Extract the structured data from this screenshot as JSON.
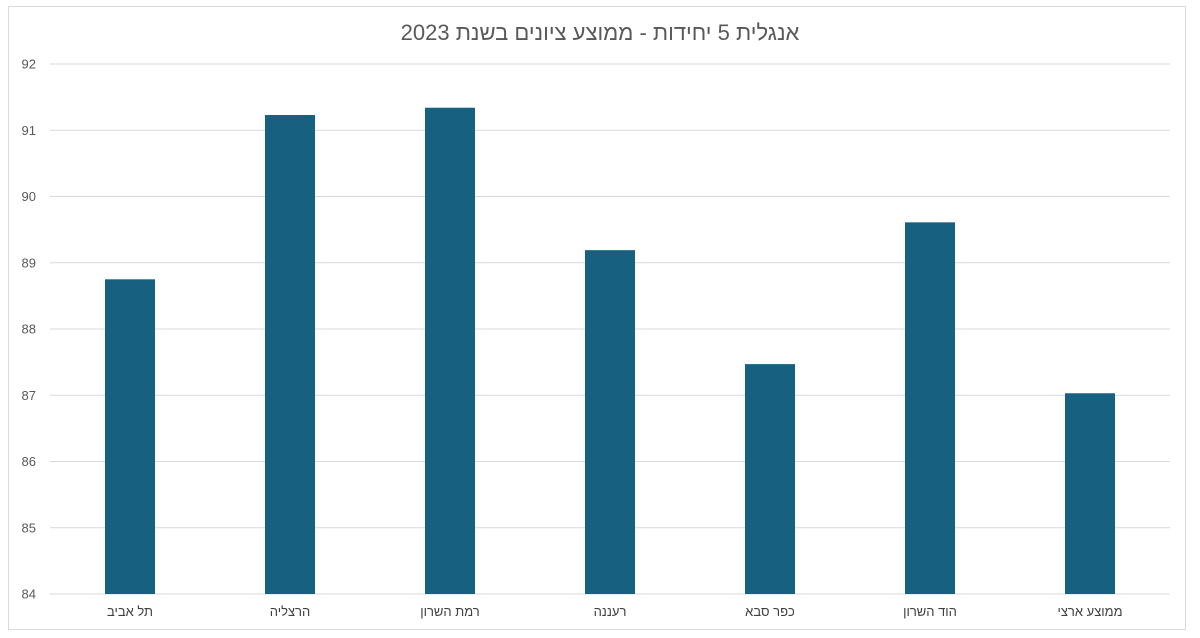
{
  "chart_data": {
    "type": "bar",
    "title": "אנגלית 5 יחידות - ממוצע ציונים בשנת 2023",
    "xlabel": "",
    "ylabel": "",
    "categories": [
      "תל אביב",
      "הרצליה",
      "רמת השרון",
      "רעננה",
      "כפר סבא",
      "הוד השרון",
      "ממוצע ארצי"
    ],
    "values": [
      88.75,
      91.23,
      91.34,
      89.19,
      87.47,
      89.61,
      87.03
    ],
    "ylim": [
      84,
      92
    ],
    "yticks": [
      84,
      85,
      86,
      87,
      88,
      89,
      90,
      91,
      92
    ],
    "grid": true,
    "bar_color": "#17607f"
  }
}
